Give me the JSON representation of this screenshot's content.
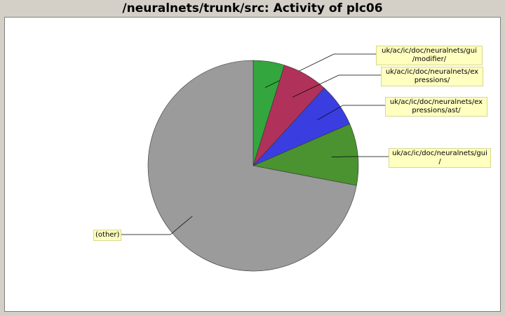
{
  "chart_data": {
    "type": "pie",
    "title": "/neuralnets/trunk/src: Activity of plc06",
    "start_angle_deg": 90,
    "direction": "clockwise",
    "slices": [
      {
        "label": "uk/ac/ic/doc/neuralnets/gui\n/modifier/",
        "value": 4.8,
        "color": "#33a63e"
      },
      {
        "label": "uk/ac/ic/doc/neuralnets/ex\npressions/",
        "value": 7.0,
        "color": "#b0325a"
      },
      {
        "label": "uk/ac/ic/doc/neuralnets/ex\npressions/ast/",
        "value": 6.7,
        "color": "#3a3ee0"
      },
      {
        "label": "uk/ac/ic/doc/neuralnets/gui\n/",
        "value": 9.5,
        "color": "#4a9330"
      },
      {
        "label": "(other)",
        "value": 72.0,
        "color": "#9b9b9b"
      }
    ]
  }
}
